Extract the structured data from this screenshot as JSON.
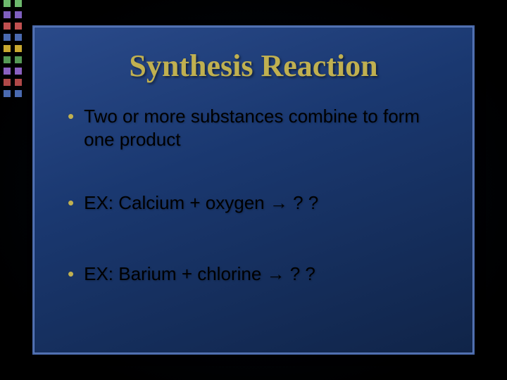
{
  "decor": {
    "square_rows": 9,
    "square_cols": 2,
    "colors": [
      "#6db96d",
      "#7f5fbf",
      "#c05050",
      "#4a6ab0",
      "#c8a830",
      "#559955",
      "#8a60c0",
      "#b04848",
      "#4a6ab0"
    ]
  },
  "slide": {
    "title": "Synthesis Reaction",
    "title_color": "#c0b050",
    "bullet_color": "#c0b050",
    "text_color": "#000000",
    "bg_gradient_from": "#2a4a8a",
    "bg_gradient_to": "#102448",
    "bullets": [
      "Two or more substances combine to form one product",
      "EX:  Calcium + oxygen → ? ?",
      "EX:  Barium +  chlorine → ? ?"
    ]
  }
}
